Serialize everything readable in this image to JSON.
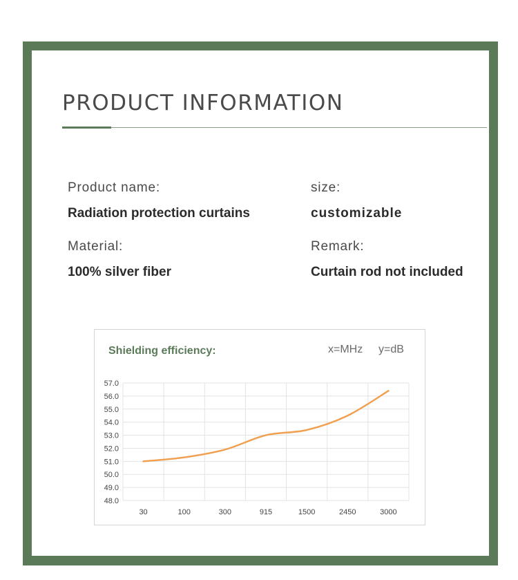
{
  "header": {
    "title": "PRODUCT INFORMATION"
  },
  "info": {
    "product_name_label": "Product name:",
    "product_name_value": "Radiation protection curtains",
    "size_label": "size:",
    "size_value": "customizable",
    "material_label": "Material:",
    "material_value": "100% silver fiber",
    "remark_label": "Remark:",
    "remark_value": "Curtain rod not included"
  },
  "chart": {
    "title": "Shielding efficiency:",
    "x_unit": "x=MHz",
    "y_unit": "y=dB"
  },
  "colors": {
    "frame": "#5b7a58",
    "line": "#f0a050",
    "grid": "#e3e3e3"
  },
  "chart_data": {
    "type": "line",
    "categories": [
      "30",
      "100",
      "300",
      "915",
      "1500",
      "2450",
      "3000"
    ],
    "series": [
      {
        "values": [
          51.0,
          51.3,
          51.9,
          53.0,
          53.4,
          54.5,
          56.4
        ]
      }
    ],
    "yticks": [
      "48.0",
      "49.0",
      "50.0",
      "51.0",
      "52.0",
      "53.0",
      "54.0",
      "55.0",
      "56.0",
      "57.0"
    ],
    "ylim": [
      48,
      57
    ],
    "grid": true,
    "legend": "none"
  }
}
